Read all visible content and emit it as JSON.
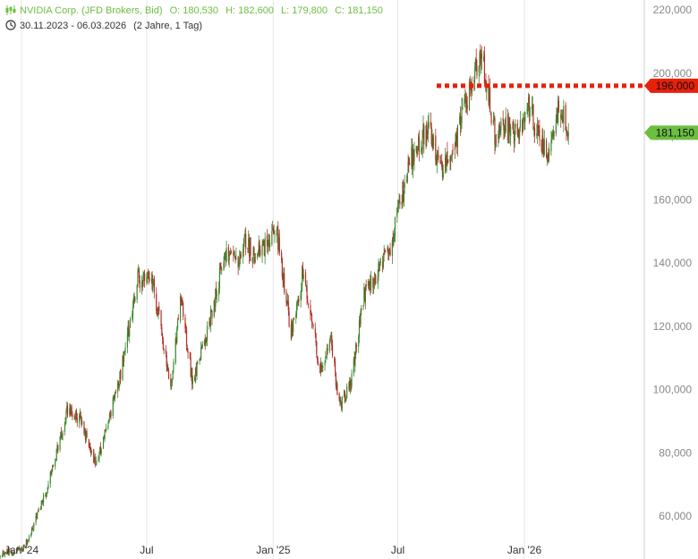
{
  "header": {
    "instrument": "NVIDIA Corp. (JFD Brokers, Bid)",
    "open": "O: 180,530",
    "high": "H: 182,600",
    "low": "L: 179,800",
    "close": "C: 181,150",
    "range": "30.11.2023 - 06.03.2026",
    "period": "(2 Jahre, 1 Tag)"
  },
  "colors": {
    "up": "#3a8a2e",
    "down": "#b03028",
    "accent": "#6cbf3f",
    "resistance": "#e8200a",
    "grid": "#e6e6e6"
  },
  "chart_data": {
    "type": "candlestick",
    "y_ticks": [
      "220,000",
      "200,000",
      "180,000",
      "160,000",
      "140,000",
      "120,000",
      "100,000",
      "80,000",
      "60,000"
    ],
    "y_tick_values": [
      220,
      200,
      180,
      160,
      140,
      120,
      100,
      80,
      60
    ],
    "x_ticks": [
      "Jan '24",
      "Jul",
      "Jan '25",
      "Jul",
      "Jan '26"
    ],
    "x_tick_dates": [
      "2024-01-01",
      "2024-07-01",
      "2025-01-01",
      "2025-07-01",
      "2026-01-01"
    ],
    "date_range": [
      "2023-11-30",
      "2026-03-06"
    ],
    "horizontal_line": {
      "label": "196,000",
      "value": 196
    },
    "last_price": {
      "label": "181,150",
      "value": 181.15
    },
    "grid": "vertical only",
    "keypoints": [
      [
        "2023-11-30",
        48
      ],
      [
        "2024-01-02",
        49
      ],
      [
        "2024-01-22",
        59
      ],
      [
        "2024-02-08",
        69
      ],
      [
        "2024-03-07",
        93
      ],
      [
        "2024-03-26",
        91
      ],
      [
        "2024-04-19",
        76
      ],
      [
        "2024-05-23",
        104
      ],
      [
        "2024-06-18",
        135
      ],
      [
        "2024-07-10",
        134
      ],
      [
        "2024-08-05",
        100
      ],
      [
        "2024-08-19",
        129
      ],
      [
        "2024-09-06",
        102
      ],
      [
        "2024-09-30",
        121
      ],
      [
        "2024-10-22",
        143
      ],
      [
        "2024-11-15",
        141
      ],
      [
        "2024-11-21",
        147
      ],
      [
        "2024-12-06",
        142
      ],
      [
        "2025-01-06",
        150
      ],
      [
        "2025-01-27",
        118
      ],
      [
        "2025-02-14",
        138
      ],
      [
        "2025-03-10",
        106
      ],
      [
        "2025-03-26",
        115
      ],
      [
        "2025-04-07",
        95
      ],
      [
        "2025-04-24",
        102
      ],
      [
        "2025-05-13",
        130
      ],
      [
        "2025-06-02",
        137
      ],
      [
        "2025-06-20",
        144
      ],
      [
        "2025-07-16",
        171
      ],
      [
        "2025-08-12",
        183
      ],
      [
        "2025-09-02",
        170
      ],
      [
        "2025-09-23",
        178
      ],
      [
        "2025-10-09",
        192
      ],
      [
        "2025-10-29",
        207
      ],
      [
        "2025-11-20",
        180
      ],
      [
        "2025-12-05",
        183
      ],
      [
        "2025-12-22",
        180
      ],
      [
        "2026-01-08",
        189
      ],
      [
        "2026-01-21",
        181
      ],
      [
        "2026-02-04",
        175
      ],
      [
        "2026-02-20",
        191
      ],
      [
        "2026-03-06",
        181.15
      ]
    ]
  }
}
